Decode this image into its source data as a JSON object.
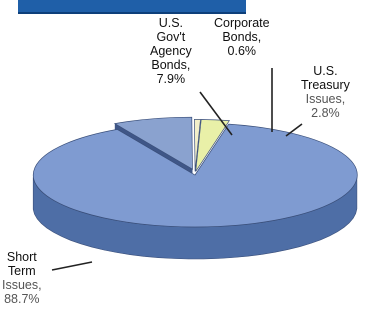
{
  "chart_data": {
    "type": "pie",
    "title": "",
    "slices": [
      {
        "name_lines": [
          "Short",
          "Term",
          "Issues,"
        ],
        "value_text": "88.7%",
        "value": 88.7,
        "color": "#7f9bd1",
        "side": "#4e6ea6"
      },
      {
        "name_lines": [
          "U.S.",
          "Gov't",
          "Agency",
          "Bonds,"
        ],
        "value_text": "7.9%",
        "value": 7.9,
        "color": "#8aa2cf",
        "side": "#4f6a9e"
      },
      {
        "name_lines": [
          "Corporate",
          "Bonds,"
        ],
        "value_text": "0.6%",
        "value": 0.6,
        "color": "#f3f0c9",
        "side": "#c7c39a"
      },
      {
        "name_lines": [
          "U.S.",
          "Treasury",
          "Issues,"
        ],
        "value_text": "2.8%",
        "value": 2.8,
        "color": "#e9f0a8",
        "side": "#b9c070"
      }
    ],
    "legend": "none"
  }
}
